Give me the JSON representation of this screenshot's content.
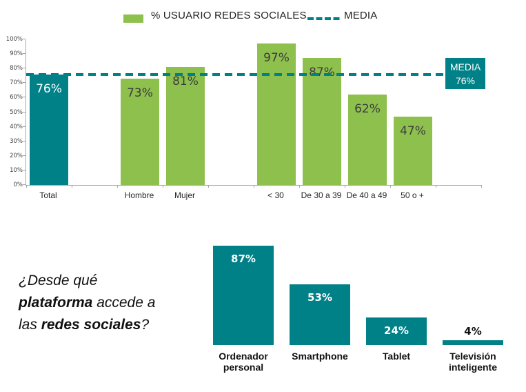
{
  "colors": {
    "teal": "#008187",
    "green": "#8ec04e",
    "axis": "#a6a6a6",
    "value_dark": "#3c3c3c"
  },
  "legend": {
    "series_label": "% USUARIO REDES SOCIALES",
    "media_label": "MEDIA"
  },
  "media_box": {
    "title": "MEDIA",
    "value": "76%"
  },
  "question": {
    "segments": [
      "¿Desde qué",
      "plataforma",
      " accede a",
      "las ",
      "redes sociales",
      "?"
    ]
  },
  "chart_data": [
    {
      "type": "bar",
      "title": "% USUARIO REDES SOCIALES",
      "xlabel": "",
      "ylabel": "",
      "ylim": [
        0,
        100
      ],
      "grid": false,
      "legend_position": "top",
      "yticks": [
        "0%",
        "10%",
        "20%",
        "30%",
        "40%",
        "50%",
        "60%",
        "70%",
        "80%",
        "90%",
        "100%"
      ],
      "mean_line": {
        "label": "MEDIA",
        "value": 76,
        "display": "76%",
        "style": "dashed",
        "color": "teal"
      },
      "bars": [
        {
          "label": "Total",
          "value": 76,
          "display": "76%",
          "color": "teal",
          "slot": 0
        },
        {
          "label": "Hombre",
          "value": 73,
          "display": "73%",
          "color": "green",
          "slot": 2
        },
        {
          "label": "Mujer",
          "value": 81,
          "display": "81%",
          "color": "green",
          "slot": 3
        },
        {
          "label": "< 30",
          "value": 97,
          "display": "97%",
          "color": "green",
          "slot": 5
        },
        {
          "label": "De 30 a 39",
          "value": 87,
          "display": "87%",
          "color": "green",
          "slot": 6
        },
        {
          "label": "De 40 a 49",
          "value": 62,
          "display": "62%",
          "color": "green",
          "slot": 7
        },
        {
          "label": "50 o +",
          "value": 47,
          "display": "47%",
          "color": "green",
          "slot": 8
        }
      ]
    },
    {
      "type": "bar",
      "title": "¿Desde qué plataforma accede a las redes sociales?",
      "xlabel": "",
      "ylabel": "",
      "ylim": [
        0,
        100
      ],
      "grid": false,
      "bars": [
        {
          "label": "Ordenador personal",
          "value": 87,
          "display": "87%"
        },
        {
          "label": "Smartphone",
          "value": 53,
          "display": "53%"
        },
        {
          "label": "Tablet",
          "value": 24,
          "display": "24%"
        },
        {
          "label": "Televisión inteligente",
          "value": 4,
          "display": "4%"
        }
      ]
    }
  ]
}
